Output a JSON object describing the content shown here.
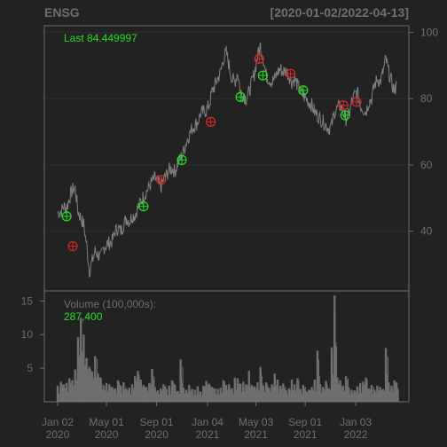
{
  "chart_data": [
    {
      "type": "line",
      "title": "ENSG",
      "subtitle": "[2020-01-02/2022-04-13]",
      "series": [
        {
          "x": [
            "2020-01-02",
            "2020-01-10",
            "2020-01-17",
            "2020-01-24",
            "2020-01-31",
            "2020-02-07",
            "2020-02-14",
            "2020-02-21",
            "2020-02-28",
            "2020-03-06",
            "2020-03-13",
            "2020-03-20",
            "2020-03-27",
            "2020-04-03",
            "2020-04-10",
            "2020-04-17",
            "2020-04-24",
            "2020-05-01",
            "2020-05-08",
            "2020-05-15",
            "2020-05-22",
            "2020-05-29",
            "2020-06-05",
            "2020-06-12",
            "2020-06-19",
            "2020-06-26",
            "2020-07-03",
            "2020-07-10",
            "2020-07-17",
            "2020-07-24",
            "2020-07-31",
            "2020-08-07",
            "2020-08-14",
            "2020-08-21",
            "2020-08-28",
            "2020-09-04",
            "2020-09-11",
            "2020-09-18",
            "2020-09-25",
            "2020-10-02",
            "2020-10-09",
            "2020-10-16",
            "2020-10-23",
            "2020-10-30",
            "2020-11-06",
            "2020-11-13",
            "2020-11-20",
            "2020-11-27",
            "2020-12-04",
            "2020-12-11",
            "2020-12-18",
            "2020-12-25",
            "2021-01-01",
            "2021-01-08",
            "2021-01-15",
            "2021-01-22",
            "2021-01-29",
            "2021-02-05",
            "2021-02-12",
            "2021-02-19",
            "2021-02-26",
            "2021-03-05",
            "2021-03-12",
            "2021-03-19",
            "2021-03-26",
            "2021-04-02",
            "2021-04-09",
            "2021-04-16",
            "2021-04-23",
            "2021-04-30",
            "2021-05-07",
            "2021-05-14",
            "2021-05-21",
            "2021-05-28",
            "2021-06-04",
            "2021-06-11",
            "2021-06-18",
            "2021-06-25",
            "2021-07-02",
            "2021-07-09",
            "2021-07-16",
            "2021-07-23",
            "2021-07-30",
            "2021-08-06",
            "2021-08-13",
            "2021-08-20",
            "2021-08-27",
            "2021-09-03",
            "2021-09-10",
            "2021-09-17",
            "2021-09-24",
            "2021-10-01",
            "2021-10-08",
            "2021-10-15",
            "2021-10-22",
            "2021-10-29",
            "2021-11-05",
            "2021-11-12",
            "2021-11-19",
            "2021-11-26",
            "2021-12-03",
            "2021-12-10",
            "2021-12-17",
            "2021-12-24",
            "2021-12-31",
            "2022-01-07",
            "2022-01-14",
            "2022-01-21",
            "2022-01-28",
            "2022-02-04",
            "2022-02-11",
            "2022-02-18",
            "2022-02-25",
            "2022-03-04",
            "2022-03-11",
            "2022-03-18",
            "2022-03-25",
            "2022-04-01",
            "2022-04-08",
            "2022-04-13"
          ],
          "y": [
            45.5,
            46,
            47.5,
            47,
            50,
            52.5,
            53,
            46,
            44,
            42,
            36,
            28,
            31,
            34,
            33,
            32,
            35,
            36,
            36.5,
            37,
            40,
            41,
            40,
            42,
            44,
            43,
            44.5,
            45,
            47,
            49,
            50.5,
            52,
            53.5,
            55,
            56,
            55,
            53,
            55.5,
            57,
            58.5,
            59,
            58,
            60.5,
            62,
            64,
            67,
            69,
            71,
            72,
            73,
            75.5,
            76,
            76.5,
            78,
            82,
            84,
            86,
            88,
            92,
            94,
            90,
            86,
            85,
            88,
            82,
            81,
            80,
            82,
            85,
            88,
            93,
            96,
            92,
            87,
            86,
            85,
            86,
            88,
            89,
            88,
            88.5,
            87,
            85,
            86,
            84,
            82,
            81,
            80,
            79,
            78,
            76,
            75,
            74,
            73,
            72,
            71,
            72,
            76,
            77,
            78,
            76,
            74,
            75,
            79,
            81,
            82,
            78,
            77,
            76,
            79,
            80,
            84,
            86,
            85,
            88,
            92,
            88,
            85,
            82,
            84.45
          ]
        }
      ],
      "markers_green": [
        {
          "x": "2020-01-24",
          "y": 44.5
        },
        {
          "x": "2020-07-31",
          "y": 47.5
        },
        {
          "x": "2020-11-02",
          "y": 61.5
        },
        {
          "x": "2021-03-26",
          "y": 80.5
        },
        {
          "x": "2021-05-20",
          "y": 87
        },
        {
          "x": "2021-08-27",
          "y": 82.5
        },
        {
          "x": "2021-12-08",
          "y": 75
        }
      ],
      "markers_red": [
        {
          "x": "2020-02-08",
          "y": 35.5
        },
        {
          "x": "2020-09-12",
          "y": 55.5
        },
        {
          "x": "2021-01-12",
          "y": 73
        },
        {
          "x": "2021-05-11",
          "y": 92
        },
        {
          "x": "2021-07-27",
          "y": 87.5
        },
        {
          "x": "2021-12-04",
          "y": 78
        },
        {
          "x": "2022-01-05",
          "y": 79
        }
      ],
      "legend_label": "Last 84.449997",
      "ylim": [
        22,
        102
      ],
      "y_ticks": [
        40,
        60,
        80,
        100
      ],
      "y_tick_labels": [
        "40",
        "60",
        "80",
        "100"
      ],
      "grid": true,
      "colors": {
        "line": "#7f7f7f",
        "buy_marker": "#21e021",
        "sell_marker": "#d42b2b",
        "background": "#222222",
        "panel_border": "#6f6f6f"
      }
    },
    {
      "type": "bar",
      "series_label": "Volume (100,000s):",
      "last_value_label": "287,400",
      "volume_values": [
        2.4,
        3.0,
        2.6,
        2.8,
        3.5,
        3.2,
        4.8,
        9.6,
        12.5,
        10.0,
        6.5,
        5.2,
        4.5,
        6.8,
        4.2,
        3.6,
        2.4,
        2.8,
        2.6,
        2.2,
        2.0,
        3.2,
        2.4,
        2.9,
        1.9,
        2.1,
        2.6,
        3.8,
        4.6,
        3.3,
        2.5,
        2.2,
        2.8,
        4.9,
        2.2,
        1.7,
        2.0,
        2.6,
        1.9,
        2.4,
        3.2,
        2.5,
        1.6,
        6.3,
        2.1,
        1.8,
        2.5,
        1.9,
        1.8,
        2.3,
        1.5,
        2.4,
        3.1,
        2.7,
        2.2,
        2.0,
        1.9,
        2.1,
        3.2,
        2.5,
        2.6,
        2.0,
        3.6,
        3.5,
        2.7,
        3.0,
        2.6,
        4.6,
        2.5,
        2.3,
        2.9,
        5.2,
        2.4,
        2.9,
        2.1,
        2.6,
        4.2,
        3.3,
        2.4,
        2.7,
        1.7,
        2.0,
        3.3,
        2.6,
        3.5,
        1.9,
        2.5,
        1.6,
        1.8,
        2.2,
        3.3,
        7.6,
        2.6,
        2.2,
        3.1,
        2.0,
        8.1,
        15.8,
        3.6,
        3.2,
        2.4,
        3.8,
        2.1,
        1.8,
        1.7,
        2.3,
        2.8,
        3.0,
        3.6,
        2.0,
        2.5,
        1.8,
        2.4,
        2.2,
        1.9,
        8.0,
        2.9,
        2.4,
        3.2,
        2.9
      ],
      "ylim": [
        0,
        16.5
      ],
      "y_ticks": [
        5,
        10,
        15
      ],
      "y_tick_labels": [
        "5",
        "10",
        "15"
      ],
      "colors": {
        "bars": "#6f6f6f"
      }
    }
  ],
  "x_axis": {
    "ticks": [
      "2020-01-02",
      "2020-05-01",
      "2020-09-01",
      "2021-01-04",
      "2021-05-03",
      "2021-09-01",
      "2022-01-03"
    ],
    "labels": [
      {
        "month": "Jan 02",
        "year": "2020"
      },
      {
        "month": "May 01",
        "year": "2020"
      },
      {
        "month": "Sep 01",
        "year": "2020"
      },
      {
        "month": "Jan 04",
        "year": "2021"
      },
      {
        "month": "May 03",
        "year": "2021"
      },
      {
        "month": "Sep 01",
        "year": "2021"
      },
      {
        "month": "Jan 03",
        "year": "2022"
      }
    ]
  }
}
